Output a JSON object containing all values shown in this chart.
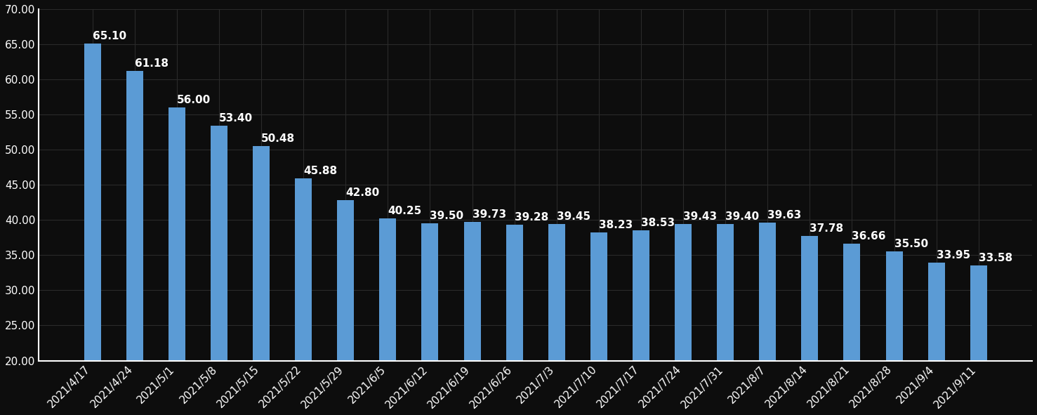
{
  "categories": [
    "2021/4/17",
    "2021/4/24",
    "2021/5/1",
    "2021/5/8",
    "2021/5/15",
    "2021/5/22",
    "2021/5/29",
    "2021/6/5",
    "2021/6/12",
    "2021/6/19",
    "2021/6/26",
    "2021/7/3",
    "2021/7/10",
    "2021/7/17",
    "2021/7/24",
    "2021/7/31",
    "2021/8/7",
    "2021/8/14",
    "2021/8/21",
    "2021/8/28",
    "2021/9/4",
    "2021/9/11"
  ],
  "values": [
    65.1,
    61.18,
    56.0,
    53.4,
    50.48,
    45.88,
    42.8,
    40.25,
    39.5,
    39.73,
    39.28,
    39.45,
    38.23,
    38.53,
    39.43,
    39.4,
    39.63,
    37.78,
    36.66,
    35.5,
    33.95,
    33.58
  ],
  "bar_color": "#5b9bd5",
  "background_color": "#0d0d0d",
  "text_color": "#ffffff",
  "grid_color": "#2a2a2a",
  "ymin": 20.0,
  "ymax": 70.0,
  "yticks": [
    20.0,
    25.0,
    30.0,
    35.0,
    40.0,
    45.0,
    50.0,
    55.0,
    60.0,
    65.0,
    70.0
  ],
  "label_fontsize": 11.0,
  "tick_fontsize": 11.0,
  "bar_width": 0.4
}
